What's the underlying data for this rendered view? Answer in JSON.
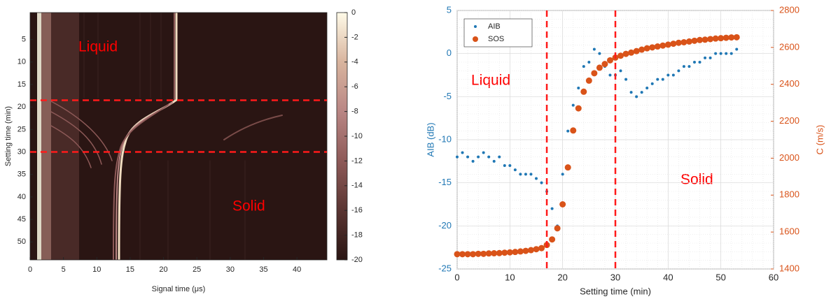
{
  "chart_data": [
    {
      "type": "heatmap",
      "xlabel": "Signal time (μs)",
      "ylabel": "Setting time (min)",
      "xlim": [
        0,
        44.5
      ],
      "ylim": [
        -1,
        54
      ],
      "y_reversed": true,
      "xticks": [
        0,
        5,
        10,
        15,
        20,
        25,
        30,
        35,
        40
      ],
      "yticks": [
        5,
        10,
        15,
        20,
        25,
        30,
        35,
        40,
        45,
        50
      ],
      "clim": [
        -20,
        0
      ],
      "cticks": [
        0,
        -2,
        -4,
        -6,
        -8,
        -10,
        -12,
        -14,
        -16,
        -18,
        -20
      ],
      "colormap": [
        "#2a1513",
        "#5a3532",
        "#8e5a58",
        "#b98684",
        "#d8b49e",
        "#fffbe8"
      ],
      "hlines": [
        18.5,
        30
      ],
      "line_color": "#ff1a1a",
      "annotations": [
        "Liquid",
        "Solid"
      ],
      "annotation_color": "#ff0000"
    },
    {
      "type": "scatter",
      "xlabel": "Setting time (min)",
      "ylabel": "AIB (dB)",
      "y2label": "C (m/s)",
      "xlim": [
        0,
        60
      ],
      "ylim": [
        -25,
        5
      ],
      "y2lim": [
        1400,
        2800
      ],
      "xticks": [
        0,
        10,
        20,
        30,
        40,
        50,
        60
      ],
      "yticks": [
        -25,
        -20,
        -15,
        -10,
        -5,
        0,
        5
      ],
      "y2ticks": [
        1400,
        1600,
        1800,
        2000,
        2200,
        2400,
        2600,
        2800
      ],
      "grid": true,
      "legend": "upper-left",
      "vlines": [
        17,
        30
      ],
      "line_color": "#ff1a1a",
      "annotations": [
        "Liquid",
        "Solid"
      ],
      "annotation_color": "#ff0000",
      "x": [
        0,
        1,
        2,
        3,
        4,
        5,
        6,
        7,
        8,
        9,
        10,
        11,
        12,
        13,
        14,
        15,
        16,
        17,
        18,
        19,
        20,
        21,
        22,
        23,
        24,
        25,
        26,
        27,
        28,
        29,
        30,
        31,
        32,
        33,
        34,
        35,
        36,
        37,
        38,
        39,
        40,
        41,
        42,
        43,
        44,
        45,
        46,
        47,
        48,
        49,
        50,
        51,
        52,
        53
      ],
      "series": [
        {
          "name": "AIB",
          "color": "#1f77b4",
          "values": [
            -12,
            -11.5,
            -12,
            -12.5,
            -12,
            -11.5,
            -12,
            -12.5,
            -12,
            -13,
            -13,
            -13.5,
            -14,
            -14,
            -14,
            -14.5,
            -15,
            -16,
            -18,
            -20,
            -14,
            -9,
            -6,
            -4,
            -1.5,
            -1,
            0.5,
            0,
            -1.5,
            -2.5,
            -2.5,
            -2,
            -3,
            -4.5,
            -5,
            -4.5,
            -4,
            -3.5,
            -3,
            -3,
            -2.5,
            -2.5,
            -2,
            -1.5,
            -1.5,
            -1,
            -1,
            -0.5,
            -0.5,
            0,
            0,
            0,
            0,
            0.5
          ]
        },
        {
          "name": "SOS",
          "color": "#d95319",
          "axis": "y2",
          "values": [
            1480,
            1480,
            1480,
            1480,
            1482,
            1482,
            1484,
            1485,
            1486,
            1488,
            1490,
            1492,
            1495,
            1498,
            1502,
            1507,
            1513,
            1530,
            1560,
            1620,
            1750,
            1950,
            2150,
            2270,
            2360,
            2420,
            2460,
            2490,
            2510,
            2530,
            2545,
            2555,
            2565,
            2572,
            2580,
            2588,
            2595,
            2600,
            2605,
            2610,
            2615,
            2620,
            2625,
            2628,
            2632,
            2636,
            2640,
            2642,
            2645,
            2648,
            2650,
            2652,
            2654,
            2655
          ]
        }
      ]
    }
  ]
}
